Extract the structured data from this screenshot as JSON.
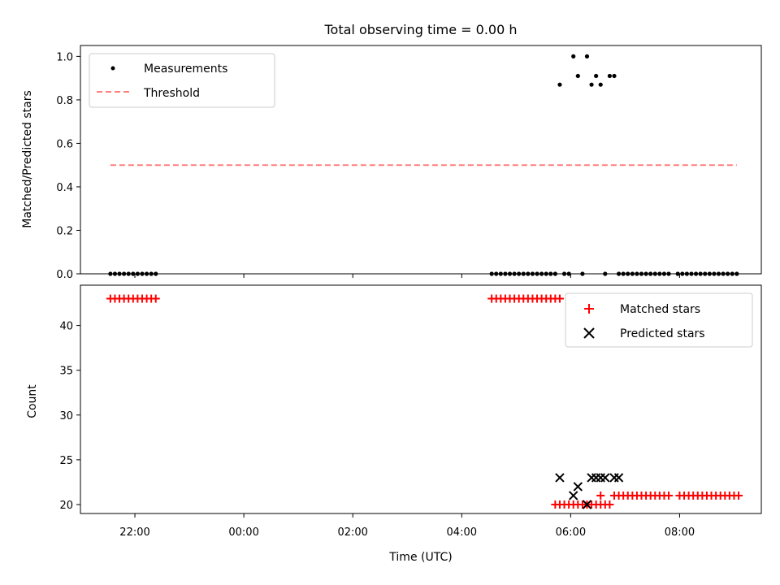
{
  "chart_data": [
    {
      "type": "scatter",
      "title": "Total observing time = 0.00 h",
      "ylabel": "Matched/Predicted stars",
      "xlabel": "",
      "xlim": [
        "21:00",
        "09:30"
      ],
      "ylim": [
        0,
        1.05
      ],
      "yticks": [
        "0.0",
        "0.2",
        "0.4",
        "0.6",
        "0.8",
        "1.0"
      ],
      "legend_position": "top-left",
      "series": [
        {
          "name": "Measurements",
          "marker": "dot",
          "color": "#000000",
          "x": [
            "21:33",
            "21:38",
            "21:43",
            "21:48",
            "21:53",
            "21:58",
            "22:03",
            "22:08",
            "22:13",
            "22:18",
            "22:23",
            "04:33",
            "04:38",
            "04:43",
            "04:48",
            "04:53",
            "04:58",
            "05:03",
            "05:08",
            "05:13",
            "05:18",
            "05:23",
            "05:28",
            "05:33",
            "05:38",
            "05:43",
            "05:48",
            "05:53",
            "05:58",
            "06:03",
            "06:08",
            "06:13",
            "06:18",
            "06:23",
            "06:28",
            "06:33",
            "06:38",
            "06:43",
            "06:48",
            "06:53",
            "06:58",
            "07:03",
            "07:08",
            "07:13",
            "07:18",
            "07:23",
            "07:28",
            "07:33",
            "07:38",
            "07:43",
            "07:48",
            "07:58",
            "08:03",
            "08:08",
            "08:13",
            "08:18",
            "08:23",
            "08:28",
            "08:33",
            "08:38",
            "08:43",
            "08:48",
            "08:53",
            "08:58",
            "09:03"
          ],
          "y": [
            0,
            0,
            0,
            0,
            0,
            0,
            0,
            0,
            0,
            0,
            0,
            0,
            0,
            0,
            0,
            0,
            0,
            0,
            0,
            0,
            0,
            0,
            0,
            0,
            0,
            0,
            0.87,
            0,
            0,
            1.0,
            0.91,
            0,
            1.0,
            0.87,
            0.91,
            0.87,
            0,
            0.91,
            0.91,
            0,
            0,
            0,
            0,
            0,
            0,
            0,
            0,
            0,
            0,
            0,
            0,
            0,
            0,
            0,
            0,
            0,
            0,
            0,
            0,
            0,
            0,
            0,
            0,
            0,
            0
          ]
        },
        {
          "name": "Threshold",
          "style": "dashed",
          "color": "#ff7f7f",
          "x": [
            "21:33",
            "09:03"
          ],
          "y": [
            0.5,
            0.5
          ]
        }
      ]
    },
    {
      "type": "scatter",
      "title": "",
      "ylabel": "Count",
      "xlabel": "Time (UTC)",
      "xlim": [
        "21:00",
        "09:30"
      ],
      "ylim": [
        19,
        44.5
      ],
      "yticks": [
        "20",
        "25",
        "30",
        "35",
        "40"
      ],
      "xticks": [
        "22:00",
        "00:00",
        "02:00",
        "04:00",
        "06:00",
        "08:00"
      ],
      "legend_position": "top-right",
      "series": [
        {
          "name": "Matched stars",
          "marker": "plus",
          "color": "#ff0000",
          "x": [
            "21:33",
            "21:38",
            "21:43",
            "21:48",
            "21:53",
            "21:58",
            "22:03",
            "22:08",
            "22:13",
            "22:18",
            "22:23",
            "04:33",
            "04:38",
            "04:43",
            "04:48",
            "04:53",
            "04:58",
            "05:03",
            "05:08",
            "05:13",
            "05:18",
            "05:23",
            "05:28",
            "05:33",
            "05:38",
            "05:43",
            "05:48",
            "05:43",
            "05:48",
            "05:53",
            "05:58",
            "06:03",
            "06:08",
            "06:13",
            "06:18",
            "06:23",
            "06:28",
            "06:33",
            "06:38",
            "06:43",
            "06:33",
            "06:48",
            "06:53",
            "06:58",
            "07:03",
            "07:08",
            "07:13",
            "07:18",
            "07:23",
            "07:28",
            "07:33",
            "07:38",
            "07:43",
            "07:48",
            "08:00",
            "08:05",
            "08:10",
            "08:15",
            "08:20",
            "08:25",
            "08:30",
            "08:35",
            "08:40",
            "08:45",
            "08:50",
            "08:55",
            "09:00",
            "09:05"
          ],
          "y": [
            43,
            43,
            43,
            43,
            43,
            43,
            43,
            43,
            43,
            43,
            43,
            43,
            43,
            43,
            43,
            43,
            43,
            43,
            43,
            43,
            43,
            43,
            43,
            43,
            43,
            43,
            43,
            20,
            20,
            20,
            20,
            20,
            20,
            20,
            20,
            20,
            20,
            20,
            20,
            20,
            21,
            21,
            21,
            21,
            21,
            21,
            21,
            21,
            21,
            21,
            21,
            21,
            21,
            21,
            21,
            21,
            21,
            21,
            21,
            21,
            21,
            21,
            21,
            21,
            21,
            21,
            21,
            21
          ]
        },
        {
          "name": "Predicted stars",
          "marker": "x",
          "color": "#000000",
          "x": [
            "05:48",
            "06:03",
            "06:08",
            "06:18",
            "06:23",
            "06:28",
            "06:33",
            "06:38",
            "06:48",
            "06:53"
          ],
          "y": [
            23,
            21,
            22,
            20,
            23,
            23,
            23,
            23,
            23,
            23
          ]
        }
      ]
    }
  ]
}
